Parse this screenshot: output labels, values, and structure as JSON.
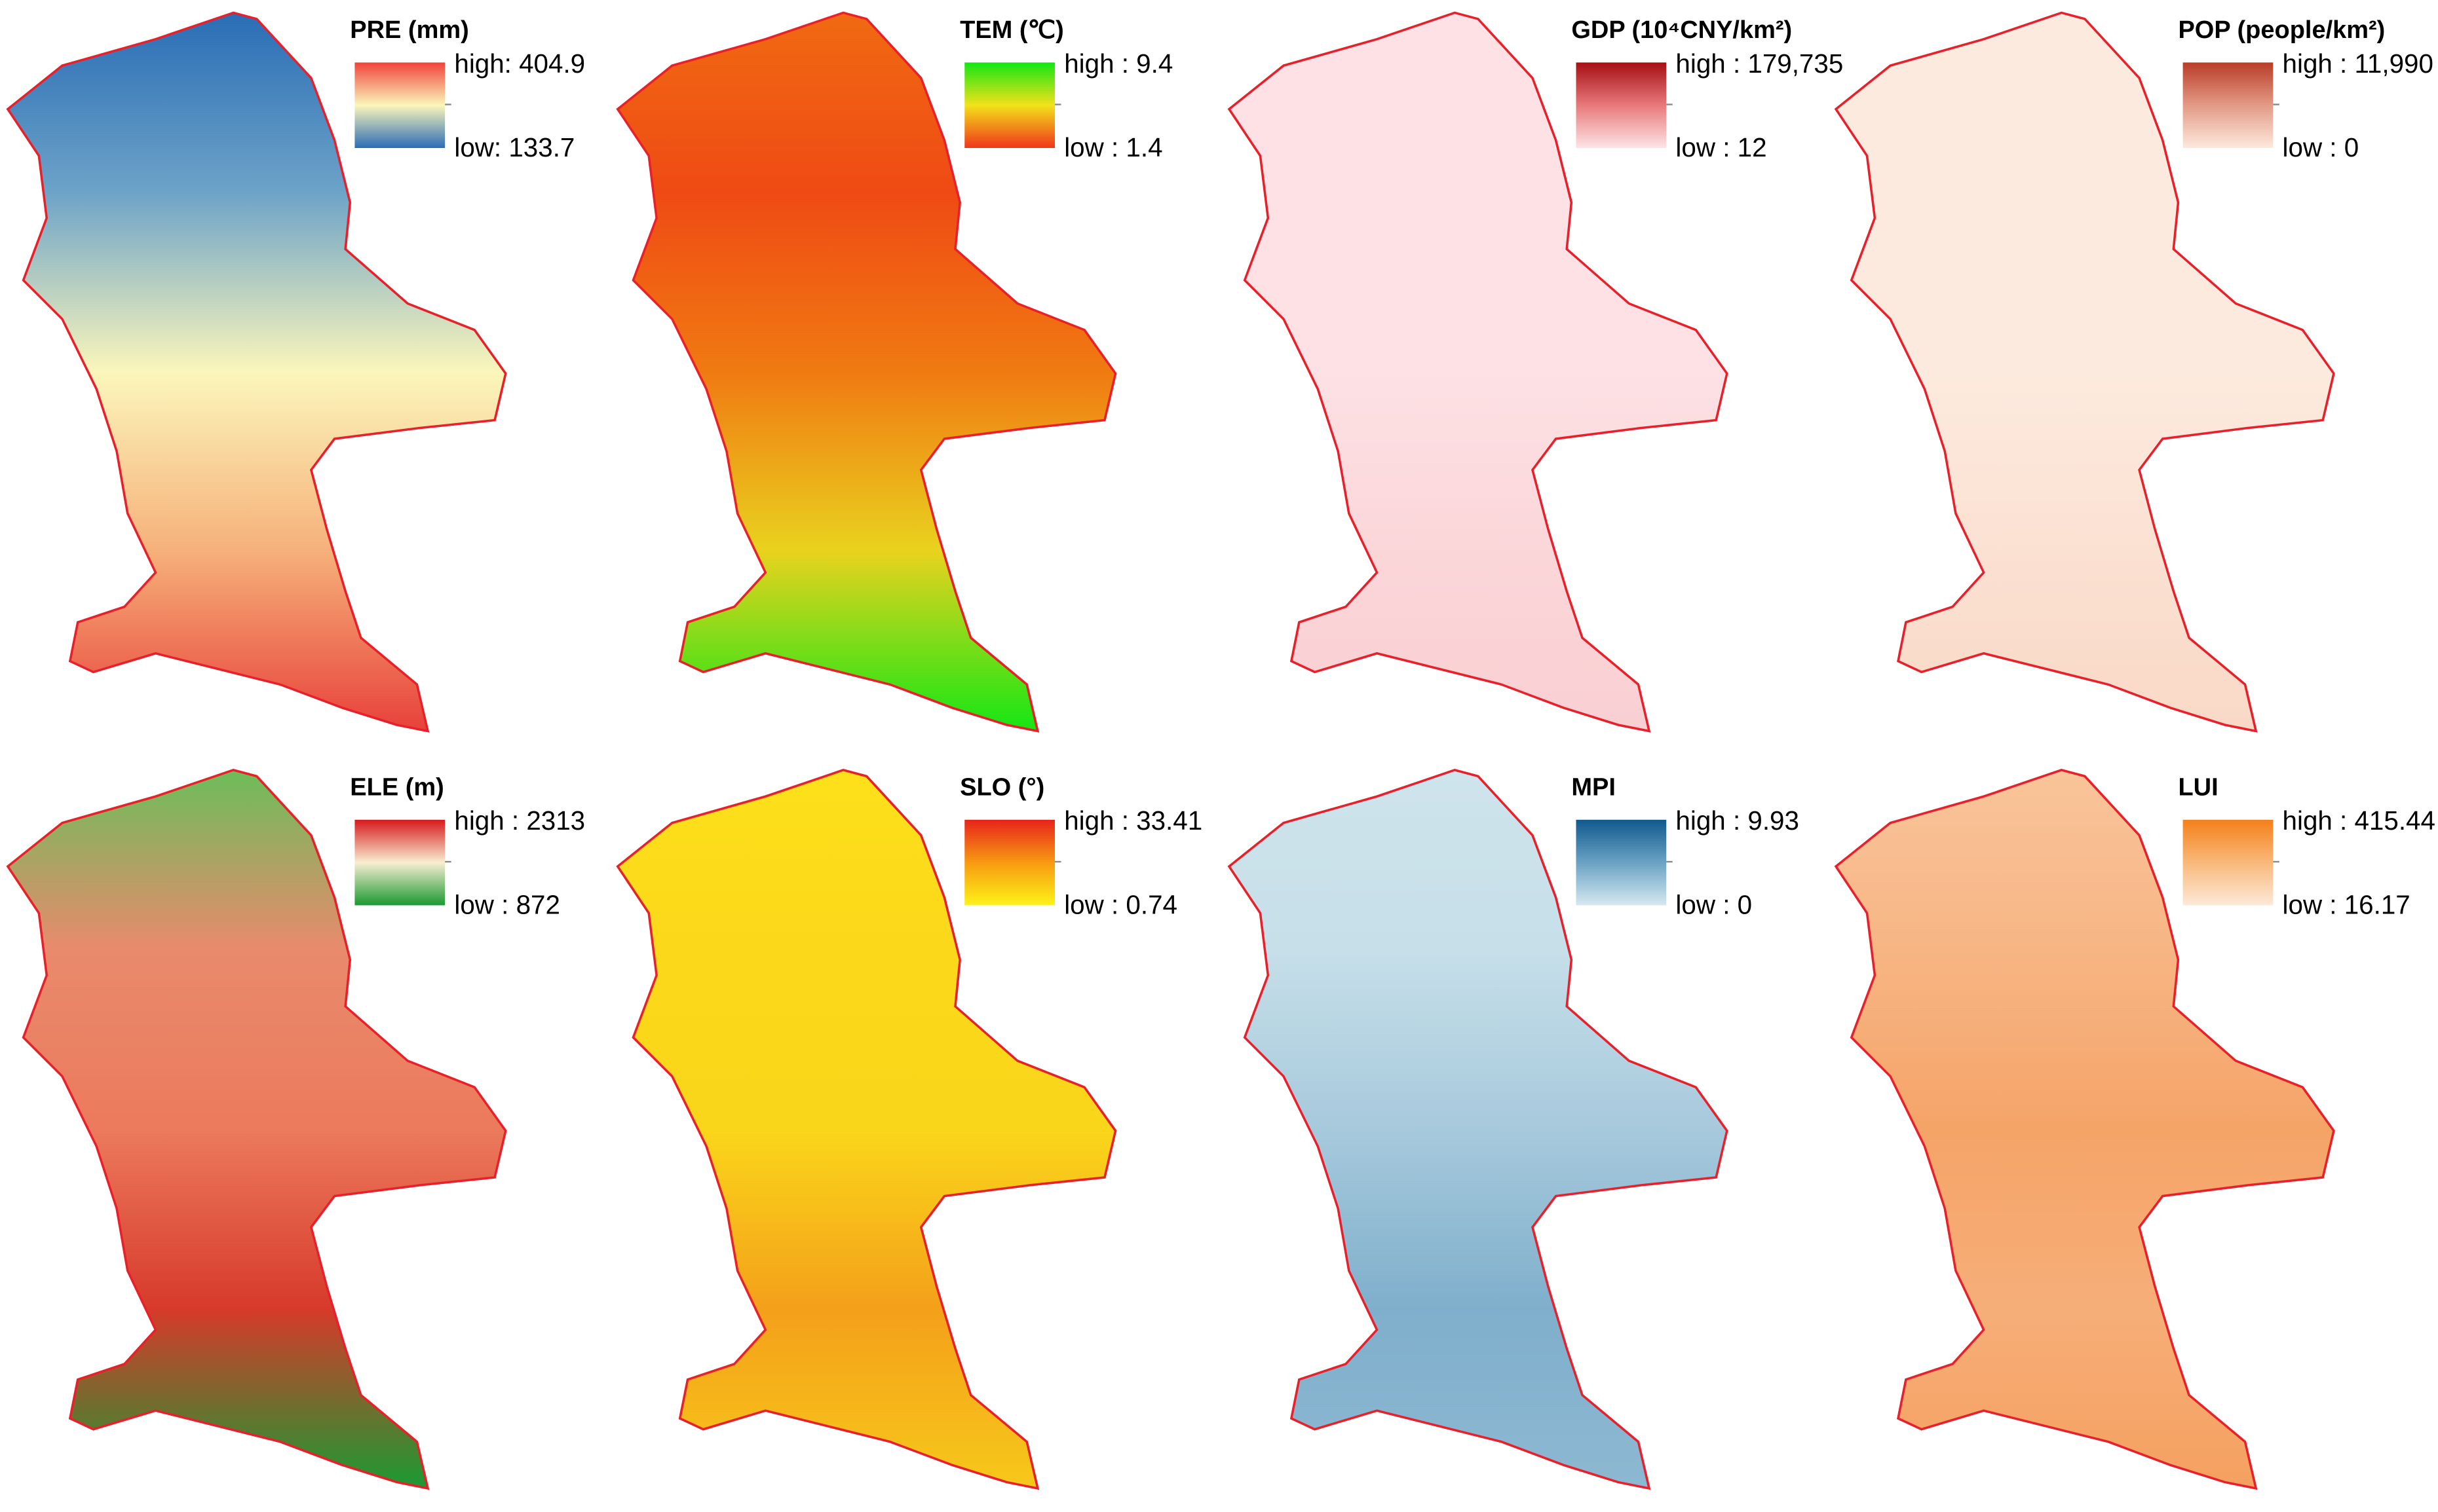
{
  "panels": [
    {
      "title": "PRE (mm)",
      "high": "high: 404.9",
      "low": "low: 133.7",
      "legend_colors": [
        "#f0433a",
        "#fbf6bb",
        "#2a6db5"
      ],
      "map_colors": [
        "#2a6db5",
        "#6da3c8",
        "#fbf6bb",
        "#f6b07a",
        "#e8413a"
      ]
    },
    {
      "title": "TEM (℃)",
      "high": "high : 9.4",
      "low": "low : 1.4",
      "legend_colors": [
        "#14e614",
        "#f2e21a",
        "#f0361a"
      ],
      "map_colors": [
        "#f06a12",
        "#ef4a14",
        "#f07a12",
        "#e9d21e",
        "#14e614"
      ]
    },
    {
      "title": "GDP (10⁴CNY/km²)",
      "high": "high : 179,735",
      "low": "low : 12",
      "legend_colors": [
        "#a50f15",
        "#e8797a",
        "#fde4e6"
      ],
      "map_colors": [
        "#fde1e4",
        "#fde1e4",
        "#fde1e4",
        "#fbd6d9",
        "#f9cfd2"
      ]
    },
    {
      "title": "POP (people/km²)",
      "high": "high : 11,990",
      "low": "low : 0",
      "legend_colors": [
        "#b83d27",
        "#e39a86",
        "#fde9dd"
      ],
      "map_colors": [
        "#fdeade",
        "#fdeade",
        "#fdeade",
        "#fbe1d2",
        "#f9d8c6"
      ]
    },
    {
      "title": "ELE (m)",
      "high": "high : 2313",
      "low": "low : 872",
      "legend_colors": [
        "#d7191c",
        "#f8eed2",
        "#1a9a32"
      ],
      "map_colors": [
        "#6cbd5a",
        "#e98a6c",
        "#ec7a5c",
        "#d73a2a",
        "#1a9a32"
      ]
    },
    {
      "title": "SLO (°)",
      "high": "high : 33.41",
      "low": "low : 0.74",
      "legend_colors": [
        "#e8231a",
        "#f79a12",
        "#fef218"
      ],
      "map_colors": [
        "#fde01a",
        "#fcd81a",
        "#fad61a",
        "#f4a01a",
        "#f7c81a"
      ]
    },
    {
      "title": "MPI",
      "high": "high : 9.93",
      "low": "low : 0",
      "legend_colors": [
        "#10598e",
        "#6aa2c4",
        "#d6e8f0"
      ],
      "map_colors": [
        "#cfe4ec",
        "#c6dfe9",
        "#a7c9dc",
        "#7fafcc",
        "#8db8d2"
      ]
    },
    {
      "title": "LUI",
      "high": "high : 415.44",
      "low": "low : 16.17",
      "legend_colors": [
        "#f4801a",
        "#f9b87a",
        "#fde9d8"
      ],
      "map_colors": [
        "#f9c49a",
        "#f7b584",
        "#f5a468",
        "#f6ae78",
        "#f5a060"
      ]
    }
  ]
}
